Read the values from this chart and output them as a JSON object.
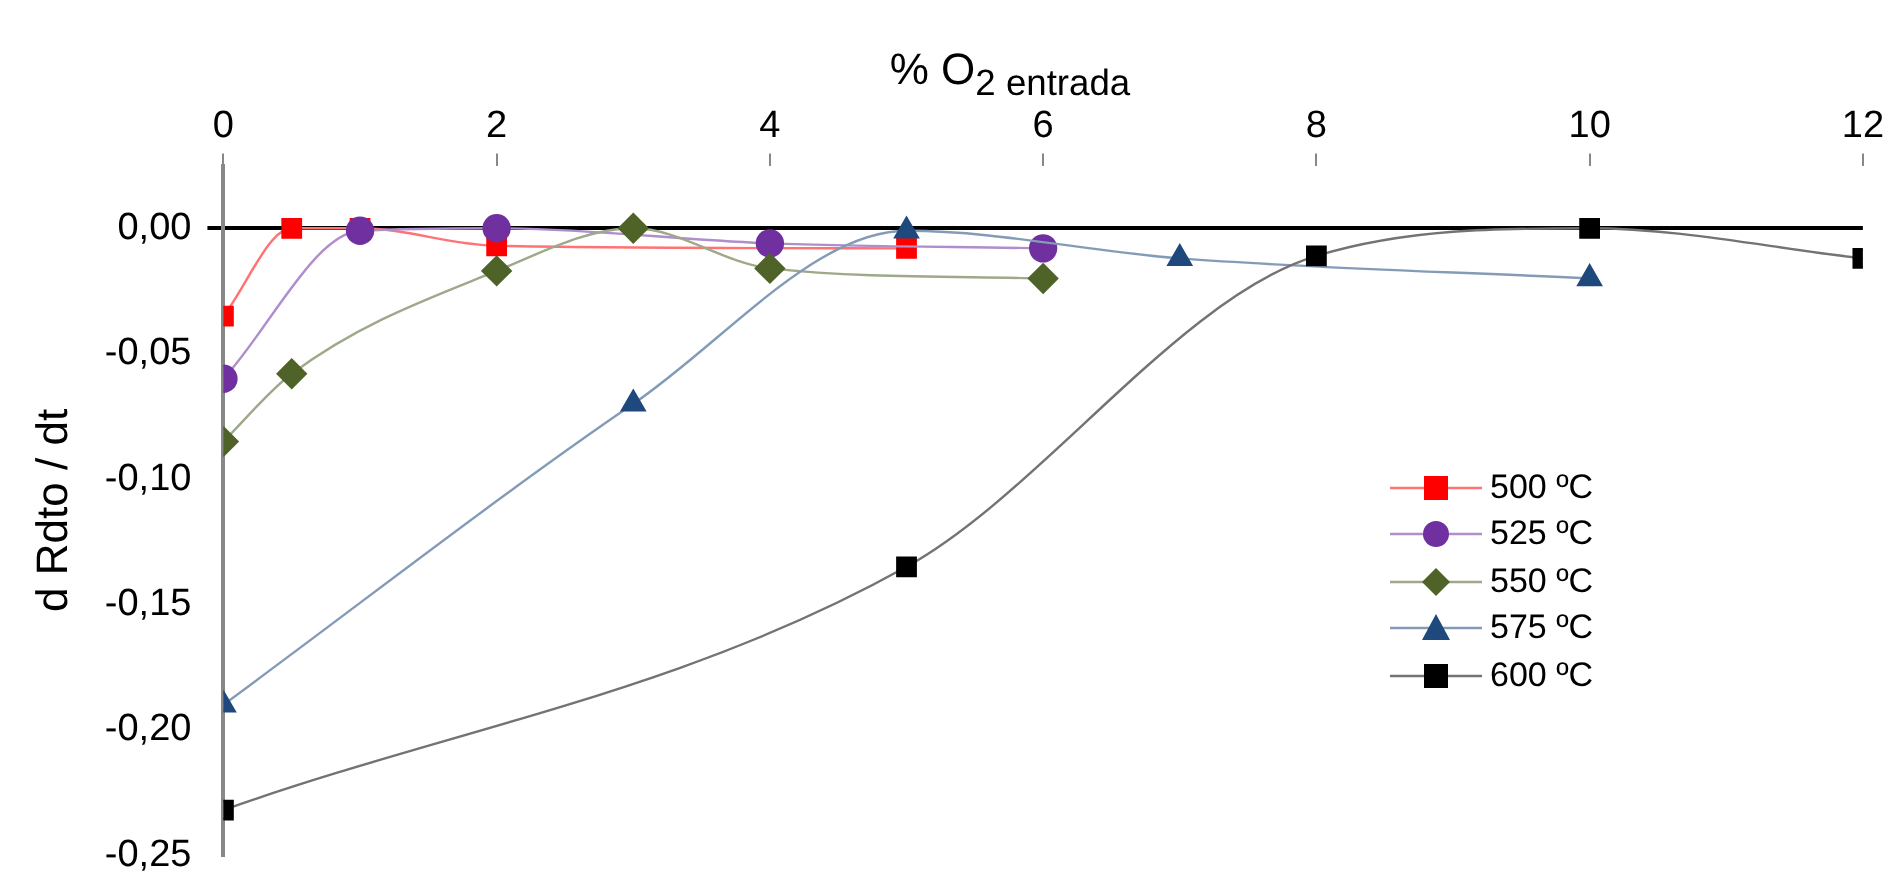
{
  "chart_data": {
    "type": "line",
    "xlabel": "% O$_{2 entrada}$",
    "ylabel": "d Rdto / dt",
    "xlim": [
      0,
      12
    ],
    "xticks": [
      0,
      2,
      4,
      6,
      8,
      10,
      12
    ],
    "ylim": [
      -0.25,
      0.025
    ],
    "yticks": [
      {
        "value": 0,
        "label": "0,00"
      },
      {
        "value": -0.05,
        "label": "-0,05"
      },
      {
        "value": -0.1,
        "label": "-0,10"
      },
      {
        "value": -0.15,
        "label": "-0,15"
      },
      {
        "value": -0.2,
        "label": "-0,20"
      },
      {
        "value": -0.25,
        "label": "-0,25"
      }
    ],
    "grid": false,
    "legend": "right",
    "series": [
      {
        "name": "500 ºC",
        "color": "#ff0000",
        "marker": "square",
        "x": [
          0,
          0.5,
          1,
          2,
          5
        ],
        "values": [
          -0.035,
          0,
          0,
          -0.007,
          -0.008
        ]
      },
      {
        "name": "525 ºC",
        "color": "#7030a0",
        "marker": "circle",
        "x": [
          0,
          1,
          2,
          4,
          6
        ],
        "values": [
          -0.06,
          -0.001,
          0,
          -0.006,
          -0.008
        ]
      },
      {
        "name": "550 ºC",
        "color": "#4f6228",
        "marker": "diamond",
        "x": [
          0,
          0.5,
          2,
          3,
          4,
          6
        ],
        "values": [
          -0.085,
          -0.058,
          -0.017,
          0,
          -0.016,
          -0.02
        ]
      },
      {
        "name": "575 ºC",
        "color": "#1f497d",
        "marker": "triangle",
        "x": [
          0,
          3,
          5,
          7,
          10
        ],
        "values": [
          -0.19,
          -0.07,
          -0.001,
          -0.012,
          -0.02
        ]
      },
      {
        "name": "600 ºC",
        "color": "#000000",
        "marker": "square",
        "x": [
          0,
          5,
          8,
          10,
          12
        ],
        "values": [
          -0.232,
          -0.135,
          -0.011,
          0,
          -0.012
        ]
      }
    ]
  }
}
